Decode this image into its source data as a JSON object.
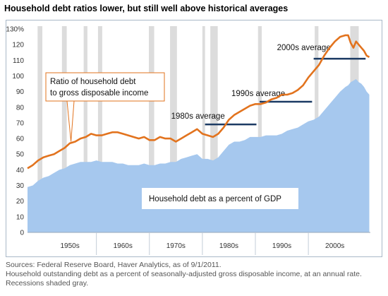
{
  "title": "Household debt ratios lower, but still well above historical averages",
  "colors": {
    "debt_line": "#e2731e",
    "gdp_area": "#a6c8ee",
    "recession": "#dcdcdc",
    "average_line": "#1b3a63"
  },
  "chart_data": {
    "type": "area",
    "y_axis": {
      "ylim": [
        0,
        130
      ],
      "tick_values": [
        0,
        10,
        20,
        30,
        40,
        50,
        60,
        70,
        80,
        90,
        100,
        110,
        120,
        130
      ],
      "tick_labels": [
        "0",
        "10",
        "20",
        "30",
        "40",
        "50",
        "60",
        "70",
        "80",
        "90",
        "100",
        "110",
        "120",
        "130%"
      ]
    },
    "x_axis": {
      "xlim": [
        1947,
        2011.7
      ],
      "decade_labels": [
        {
          "label": "1950s",
          "start": 1950,
          "end": 1960
        },
        {
          "label": "1960s",
          "start": 1960,
          "end": 1970
        },
        {
          "label": "1970s",
          "start": 1970,
          "end": 1980
        },
        {
          "label": "1980s",
          "start": 1980,
          "end": 1990
        },
        {
          "label": "1990s",
          "start": 1990,
          "end": 2000
        },
        {
          "label": "2000s",
          "start": 2000,
          "end": 2010
        }
      ]
    },
    "recessions": [
      [
        1948.9,
        1949.8
      ],
      [
        1953.5,
        1954.4
      ],
      [
        1957.6,
        1958.3
      ],
      [
        1960.3,
        1961.1
      ],
      [
        1969.9,
        1970.9
      ],
      [
        1973.9,
        1975.2
      ],
      [
        1980.0,
        1980.5
      ],
      [
        1981.5,
        1982.9
      ],
      [
        1990.5,
        1991.2
      ],
      [
        2001.2,
        2001.9
      ],
      [
        2007.9,
        2009.5
      ]
    ],
    "series": [
      {
        "name": "Ratio of household debt to gross disposable income",
        "style": "line",
        "x": [
          1947,
          1948,
          1949,
          1950,
          1951,
          1952,
          1953,
          1954,
          1955,
          1956,
          1957,
          1958,
          1959,
          1960,
          1961,
          1962,
          1963,
          1964,
          1965,
          1966,
          1967,
          1968,
          1969,
          1970,
          1971,
          1972,
          1973,
          1974,
          1975,
          1976,
          1977,
          1978,
          1979,
          1980,
          1981,
          1982,
          1983,
          1984,
          1985,
          1986,
          1987,
          1988,
          1989,
          1990,
          1991,
          1992,
          1993,
          1994,
          1995,
          1996,
          1997,
          1998,
          1999,
          2000,
          2001,
          2002,
          2003,
          2004,
          2005,
          2006,
          2007,
          2007.5,
          2008,
          2008.5,
          2009,
          2009.5,
          2010,
          2010.5,
          2011,
          2011.5
        ],
        "y": [
          41,
          43,
          46,
          48,
          49,
          50,
          52,
          54,
          57,
          58,
          60,
          61,
          63,
          62,
          62,
          63,
          64,
          64,
          63,
          62,
          61,
          60,
          61,
          59,
          59,
          61,
          60,
          60,
          58,
          60,
          62,
          64,
          66,
          63,
          62,
          61,
          63,
          67,
          72,
          75,
          77,
          79,
          81,
          82,
          82,
          83,
          85,
          86,
          88,
          88,
          89,
          91,
          94,
          99,
          103,
          107,
          113,
          118,
          122,
          125,
          126,
          126,
          121,
          118,
          122,
          120,
          118,
          116,
          113,
          112
        ]
      },
      {
        "name": "Household debt as a percent of GDP",
        "style": "area",
        "x": [
          1947,
          1948,
          1949,
          1950,
          1951,
          1952,
          1953,
          1954,
          1955,
          1956,
          1957,
          1958,
          1959,
          1960,
          1961,
          1962,
          1963,
          1964,
          1965,
          1966,
          1967,
          1968,
          1969,
          1970,
          1971,
          1972,
          1973,
          1974,
          1975,
          1976,
          1977,
          1978,
          1979,
          1980,
          1981,
          1982,
          1983,
          1984,
          1985,
          1986,
          1987,
          1988,
          1989,
          1990,
          1991,
          1992,
          1993,
          1994,
          1995,
          1996,
          1997,
          1998,
          1999,
          2000,
          2001,
          2002,
          2003,
          2004,
          2005,
          2006,
          2007,
          2007.5,
          2008,
          2008.5,
          2009,
          2009.5,
          2010,
          2010.5,
          2011,
          2011.5
        ],
        "y": [
          29,
          30,
          33,
          35,
          36,
          38,
          40,
          41,
          43,
          44,
          45,
          45,
          45,
          46,
          45,
          45,
          45,
          44,
          44,
          43,
          43,
          43,
          44,
          43,
          43,
          44,
          44,
          45,
          45,
          47,
          48,
          49,
          50,
          47,
          47,
          46,
          48,
          52,
          56,
          58,
          58,
          59,
          61,
          61,
          61,
          62,
          62,
          62,
          63,
          65,
          66,
          67,
          69,
          71,
          72,
          74,
          78,
          82,
          86,
          90,
          93,
          94,
          96,
          97,
          98,
          96,
          95,
          93,
          90,
          88
        ]
      }
    ],
    "averages": [
      {
        "label": "1980s average",
        "value": 69,
        "start": 1980.5,
        "end": 1990.2
      },
      {
        "label": "1990s average",
        "value": 83.5,
        "start": 1990.8,
        "end": 2000.7
      },
      {
        "label": "2000s average",
        "value": 111,
        "start": 2001,
        "end": 2010.8
      }
    ],
    "annotations": {
      "debt_label_lines": [
        "Ratio of household debt",
        "to gross disposable income"
      ],
      "gdp_label": "Household debt as a percent of GDP"
    }
  },
  "sources": [
    "Sources: Federal Reserve Board, Haver Analytics, as of 9/1/2011.",
    "Household outstanding debt as a percent of seasonally-adjusted gross disposable income, at an annual rate.",
    "Recessions shaded gray."
  ]
}
